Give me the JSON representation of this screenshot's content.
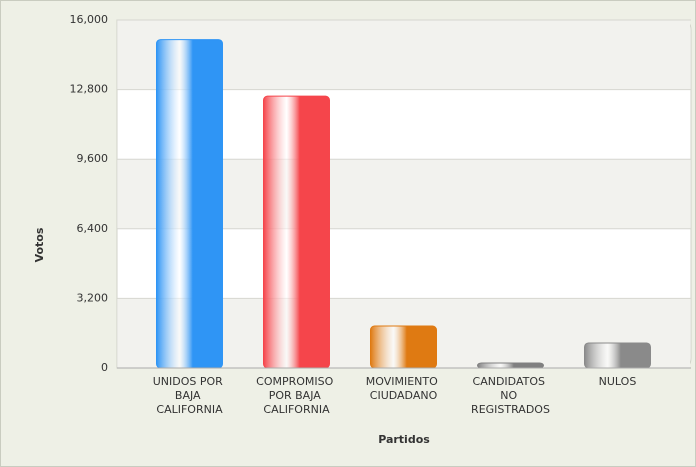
{
  "chart_data": {
    "type": "bar",
    "x_label": "Partidos",
    "y_label": "Votos",
    "categories": [
      "UNIDOS POR BAJA CALIFORNIA",
      "COMPROMISO POR BAJA CALIFORNIA",
      "MOVIMIENTO CIUDADANO",
      "CANDIDATOS NO REGISTRADOS",
      "NULOS"
    ],
    "values": [
      15100,
      12500,
      1930,
      230,
      1150
    ],
    "colors": [
      "#2f95f5",
      "#f5454b",
      "#df7a12",
      "#808080",
      "#8a8a8a"
    ],
    "ylim": [
      0,
      16000
    ],
    "yticks": [
      0,
      {
        "value": 3200,
        "label": "3,200"
      },
      {
        "value": 6400,
        "label": "6,400"
      },
      {
        "value": 9600,
        "label": "9,600"
      },
      {
        "value": 12800,
        "label": "12,800"
      },
      {
        "value": 16000,
        "label": "16,000"
      }
    ],
    "grid": true
  }
}
